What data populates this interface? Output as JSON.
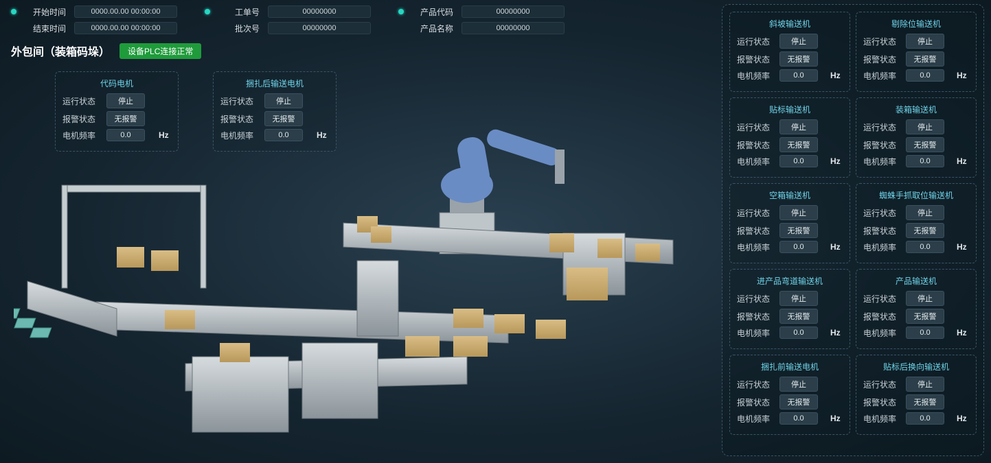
{
  "header": {
    "start_time": {
      "label": "开始时间",
      "value": "0000.00.00 00:00:00"
    },
    "end_time": {
      "label": "结束时间",
      "value": "0000.00.00 00:00:00"
    },
    "work_order": {
      "label": "工单号",
      "value": "00000000"
    },
    "batch": {
      "label": "批次号",
      "value": "00000000"
    },
    "prod_code": {
      "label": "产品代码",
      "value": "00000000"
    },
    "prod_name": {
      "label": "产品名称",
      "value": "00000000"
    }
  },
  "title": "外包间（装箱码垛）",
  "plc_status": "设备PLC连接正常",
  "row_labels": {
    "run": "运行状态",
    "alarm": "报警状态",
    "freq": "电机频率",
    "hz": "Hz"
  },
  "defaults": {
    "run_value": "停止",
    "alarm_value": "无报警",
    "freq_value": "0.0"
  },
  "float_cards": [
    {
      "title": "代码电机",
      "run": "停止",
      "alarm": "无报警",
      "freq": "0.0"
    },
    {
      "title": "捆扎后输送电机",
      "run": "停止",
      "alarm": "无报警",
      "freq": "0.0"
    }
  ],
  "right_cards": [
    {
      "title": "斜坡输送机",
      "run": "停止",
      "alarm": "无报警",
      "freq": "0.0"
    },
    {
      "title": "剔除位输送机",
      "run": "停止",
      "alarm": "无报警",
      "freq": "0.0"
    },
    {
      "title": "贴标输送机",
      "run": "停止",
      "alarm": "无报警",
      "freq": "0.0"
    },
    {
      "title": "装箱输送机",
      "run": "停止",
      "alarm": "无报警",
      "freq": "0.0"
    },
    {
      "title": "空箱输送机",
      "run": "停止",
      "alarm": "无报警",
      "freq": "0.0"
    },
    {
      "title": "蜘蛛手抓取位输送机",
      "run": "停止",
      "alarm": "无报警",
      "freq": "0.0"
    },
    {
      "title": "进产品弯道输送机",
      "run": "停止",
      "alarm": "无报警",
      "freq": "0.0"
    },
    {
      "title": "产品输送机",
      "run": "停止",
      "alarm": "无报警",
      "freq": "0.0"
    },
    {
      "title": "捆扎前输送电机",
      "run": "停止",
      "alarm": "无报警",
      "freq": "0.0"
    },
    {
      "title": "贴标后换向输送机",
      "run": "停止",
      "alarm": "无报警",
      "freq": "0.0"
    }
  ],
  "colors": {
    "accent_dot": "#27d6c2",
    "card_title": "#6fd3e8",
    "plc_badge": "#1f9b3b",
    "pill_bg": "#2b3e49",
    "border": "#3a5565",
    "robot_body": "#6a8cc4",
    "robot_base": "#d8dedf",
    "conveyor": "#b8bfc4",
    "conveyor_dark": "#7d868c",
    "box": "#c9a968",
    "tray": "#6bb9b0"
  }
}
